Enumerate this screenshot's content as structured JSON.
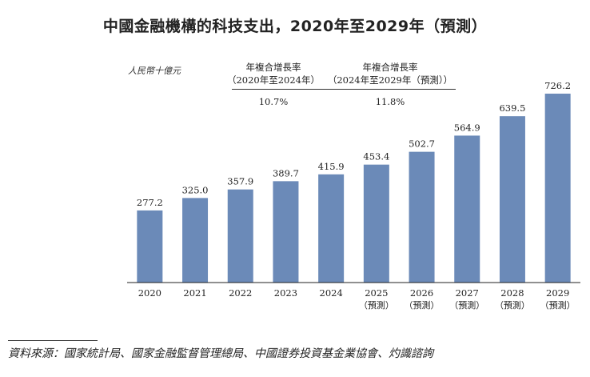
{
  "chart_data": {
    "type": "bar",
    "title": "中國金融機構的科技支出，2020年至2029年（預測）",
    "ylabel": "人民幣十億元",
    "xlabel": "",
    "ylim": [
      0,
      726.2
    ],
    "grid": false,
    "bar_color": "#6b8ab8",
    "categories": [
      "2020",
      "2021",
      "2022",
      "2023",
      "2024",
      "2025",
      "2026",
      "2027",
      "2028",
      "2029"
    ],
    "category_notes": [
      "",
      "",
      "",
      "",
      "",
      "（預測）",
      "（預測）",
      "（預測）",
      "（預測）",
      "（預測）"
    ],
    "values": [
      277.2,
      325.0,
      357.9,
      389.7,
      415.9,
      453.4,
      502.7,
      564.9,
      639.5,
      726.2
    ],
    "value_labels": [
      "277.2",
      "325.0",
      "357.9",
      "389.7",
      "415.9",
      "453.4",
      "502.7",
      "564.9",
      "639.5",
      "726.2"
    ],
    "cagr": [
      {
        "header_line1": "年複合增長率",
        "header_line2": "（2020年至2024年）",
        "value": "10.7%"
      },
      {
        "header_line1": "年複合增長率",
        "header_line2": "（2024年至2029年（預測））",
        "value": "11.8%"
      }
    ]
  },
  "source": "資料來源：國家統計局、國家金融監督管理總局、中國證券投資基金業協會、灼識諮詢"
}
